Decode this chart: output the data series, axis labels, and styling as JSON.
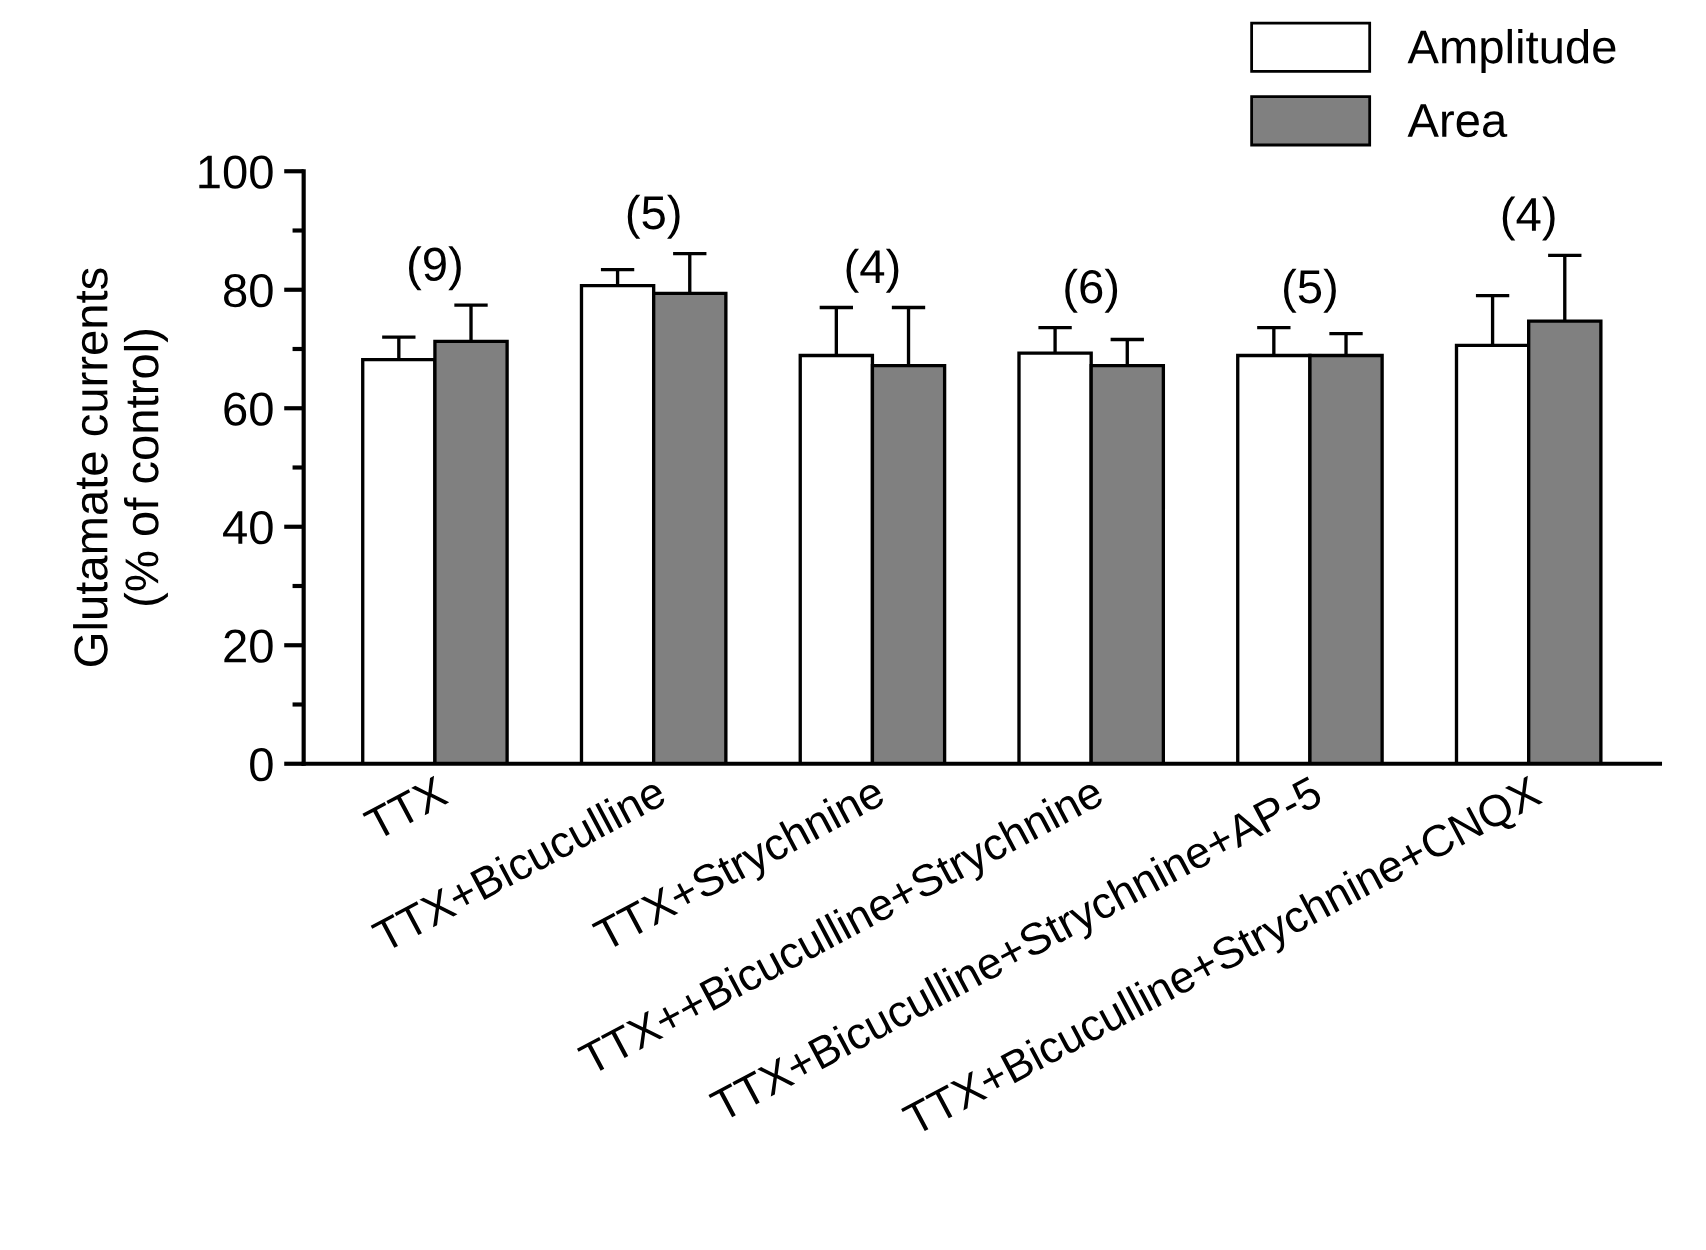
{
  "chart_data": {
    "type": "bar",
    "ylabel": "Glutamate currents\n(% of control)",
    "categories": [
      "TTX",
      "TTX+Bicuculline",
      "TTX+Strychnine",
      "TTX++Bicuculline+Strychnine",
      "TTX+Bicuculline+Strychnine+AP-5",
      "TTX+Bicuculline+Strychnine+CNQX"
    ],
    "series": [
      {
        "name": "Amplitude",
        "color": "#ffffff",
        "values": [
          68.2,
          80.7,
          68.9,
          69.3,
          68.9,
          70.6
        ],
        "errors": [
          3.8,
          2.7,
          8.1,
          4.3,
          4.7,
          8.4
        ]
      },
      {
        "name": "Area",
        "color": "#808080",
        "values": [
          71.3,
          79.4,
          67.2,
          67.2,
          68.9,
          74.7
        ],
        "errors": [
          6.1,
          6.7,
          9.8,
          4.4,
          3.7,
          11.1
        ]
      }
    ],
    "annotations": [
      "(9)",
      "(5)",
      "(4)",
      "(6)",
      "(5)",
      "(4)"
    ],
    "ylim": [
      0,
      100
    ],
    "yticks": [
      0,
      20,
      40,
      60,
      80,
      100
    ],
    "grid": false,
    "legend": "top right"
  }
}
